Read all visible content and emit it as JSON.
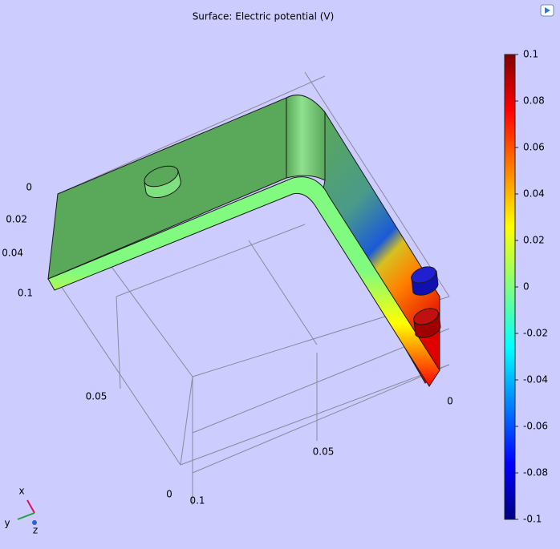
{
  "title": "Surface: Electric potential (V)",
  "colorbar": {
    "lim": [
      -0.1,
      0.1
    ],
    "ticks": [
      0.1,
      0.08,
      0.06,
      0.04,
      0.02,
      0,
      -0.02,
      -0.04,
      -0.06,
      -0.08,
      -0.1
    ]
  },
  "axis_ticks": {
    "axis_1": [
      0,
      0.02,
      0.04,
      0.1
    ],
    "axis_2": [
      0.05,
      0,
      0.1
    ],
    "axis_3": [
      0.05,
      0
    ]
  },
  "triad": [
    "x",
    "y",
    "z"
  ]
}
